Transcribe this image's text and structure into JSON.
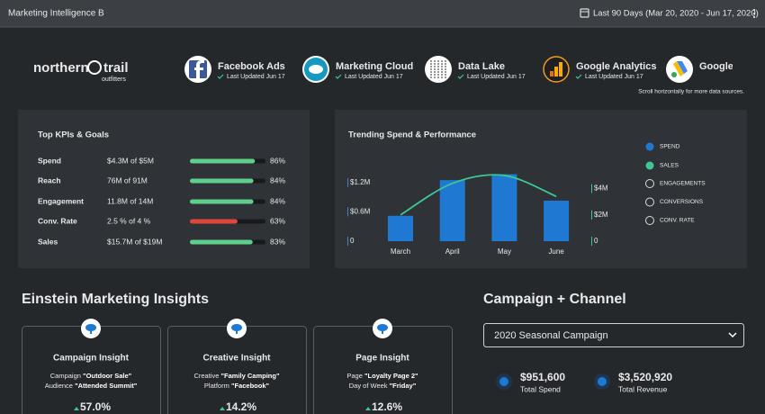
{
  "header": {
    "title": "Marketing Intelligence B",
    "date_range": "Last 90 Days (Mar 20, 2020 - Jun 17, 2020)"
  },
  "logo": {
    "name1": "northern",
    "name2": "trail",
    "tagline": "outfitters"
  },
  "sources": [
    {
      "name": "Facebook Ads",
      "updated": "Last Updated Jun 17"
    },
    {
      "name": "Marketing Cloud",
      "updated": "Last Updated Jun 17"
    },
    {
      "name": "Data Lake",
      "updated": "Last Updated Jun 17"
    },
    {
      "name": "Google Analytics",
      "updated": "Last Updated Jun 17"
    },
    {
      "name": "Google A"
    }
  ],
  "scroll_hint": "Scroll horizontally for more data sources.",
  "kpis": {
    "title": "Top KPIs & Goals",
    "rows": [
      {
        "label": "Spend",
        "value": "$4.3M of $5M",
        "pct": 86,
        "pct_label": "86%"
      },
      {
        "label": "Reach",
        "value": "76M of 91M",
        "pct": 84,
        "pct_label": "84%"
      },
      {
        "label": "Engagement",
        "value": "11.8M of 14M",
        "pct": 84,
        "pct_label": "84%"
      },
      {
        "label": "Conv. Rate",
        "value": "2.5 % of 4 %",
        "pct": 63,
        "pct_label": "63%"
      },
      {
        "label": "Sales",
        "value": "$15.7M of $19M",
        "pct": 83,
        "pct_label": "83%"
      }
    ]
  },
  "chart_data": {
    "type": "bar",
    "title": "Trending Spend & Performance",
    "categories": [
      "March",
      "April",
      "May",
      "June"
    ],
    "series": [
      {
        "name": "SPEND",
        "color": "#1f78d1",
        "values": [
          520000,
          1250000,
          1370000,
          830000
        ]
      },
      {
        "name": "SALES",
        "color": "#3cc894",
        "type": "line",
        "axis": "y2",
        "values": [
          2000000,
          4400000,
          5000000,
          3400000
        ]
      }
    ],
    "legend_inactive": [
      "ENGAGEMENTS",
      "CONVERSIONS",
      "CONV. RATE"
    ],
    "ylim": [
      0,
      1400000
    ],
    "yticks": [
      0,
      {
        "value": 600000,
        "label": "$0.6M"
      },
      {
        "value": 1200000,
        "label": "$1.2M"
      }
    ],
    "y2lim": [
      0,
      5200000
    ],
    "y2ticks": [
      0,
      {
        "value": 2000000,
        "label": "$2M"
      },
      {
        "value": 4000000,
        "label": "$4M"
      }
    ]
  },
  "insights": {
    "title": "Einstein Marketing Insights",
    "cards": [
      {
        "title": "Campaign Insight",
        "line1": [
          "Campaign",
          "\"Outdoor Sale\""
        ],
        "line2": [
          "Audience",
          "\"Attended Summit\""
        ],
        "change": "57.0%"
      },
      {
        "title": "Creative Insight",
        "line1": [
          "Creative",
          "\"Family Camping\""
        ],
        "line2": [
          "Platform",
          "\"Facebook\""
        ],
        "change": "14.2%"
      },
      {
        "title": "Page Insight",
        "line1": [
          "Page",
          "\"Loyalty Page 2\""
        ],
        "line2": [
          "Day of Week",
          "\"Friday\""
        ],
        "change": "12.6%"
      }
    ]
  },
  "campaign": {
    "title": "Campaign + Channel",
    "selected": "2020 Seasonal Campaign",
    "stats": [
      {
        "value": "$951,600",
        "label": "Total Spend"
      },
      {
        "value": "$3,520,920",
        "label": "Total Revenue"
      }
    ]
  }
}
